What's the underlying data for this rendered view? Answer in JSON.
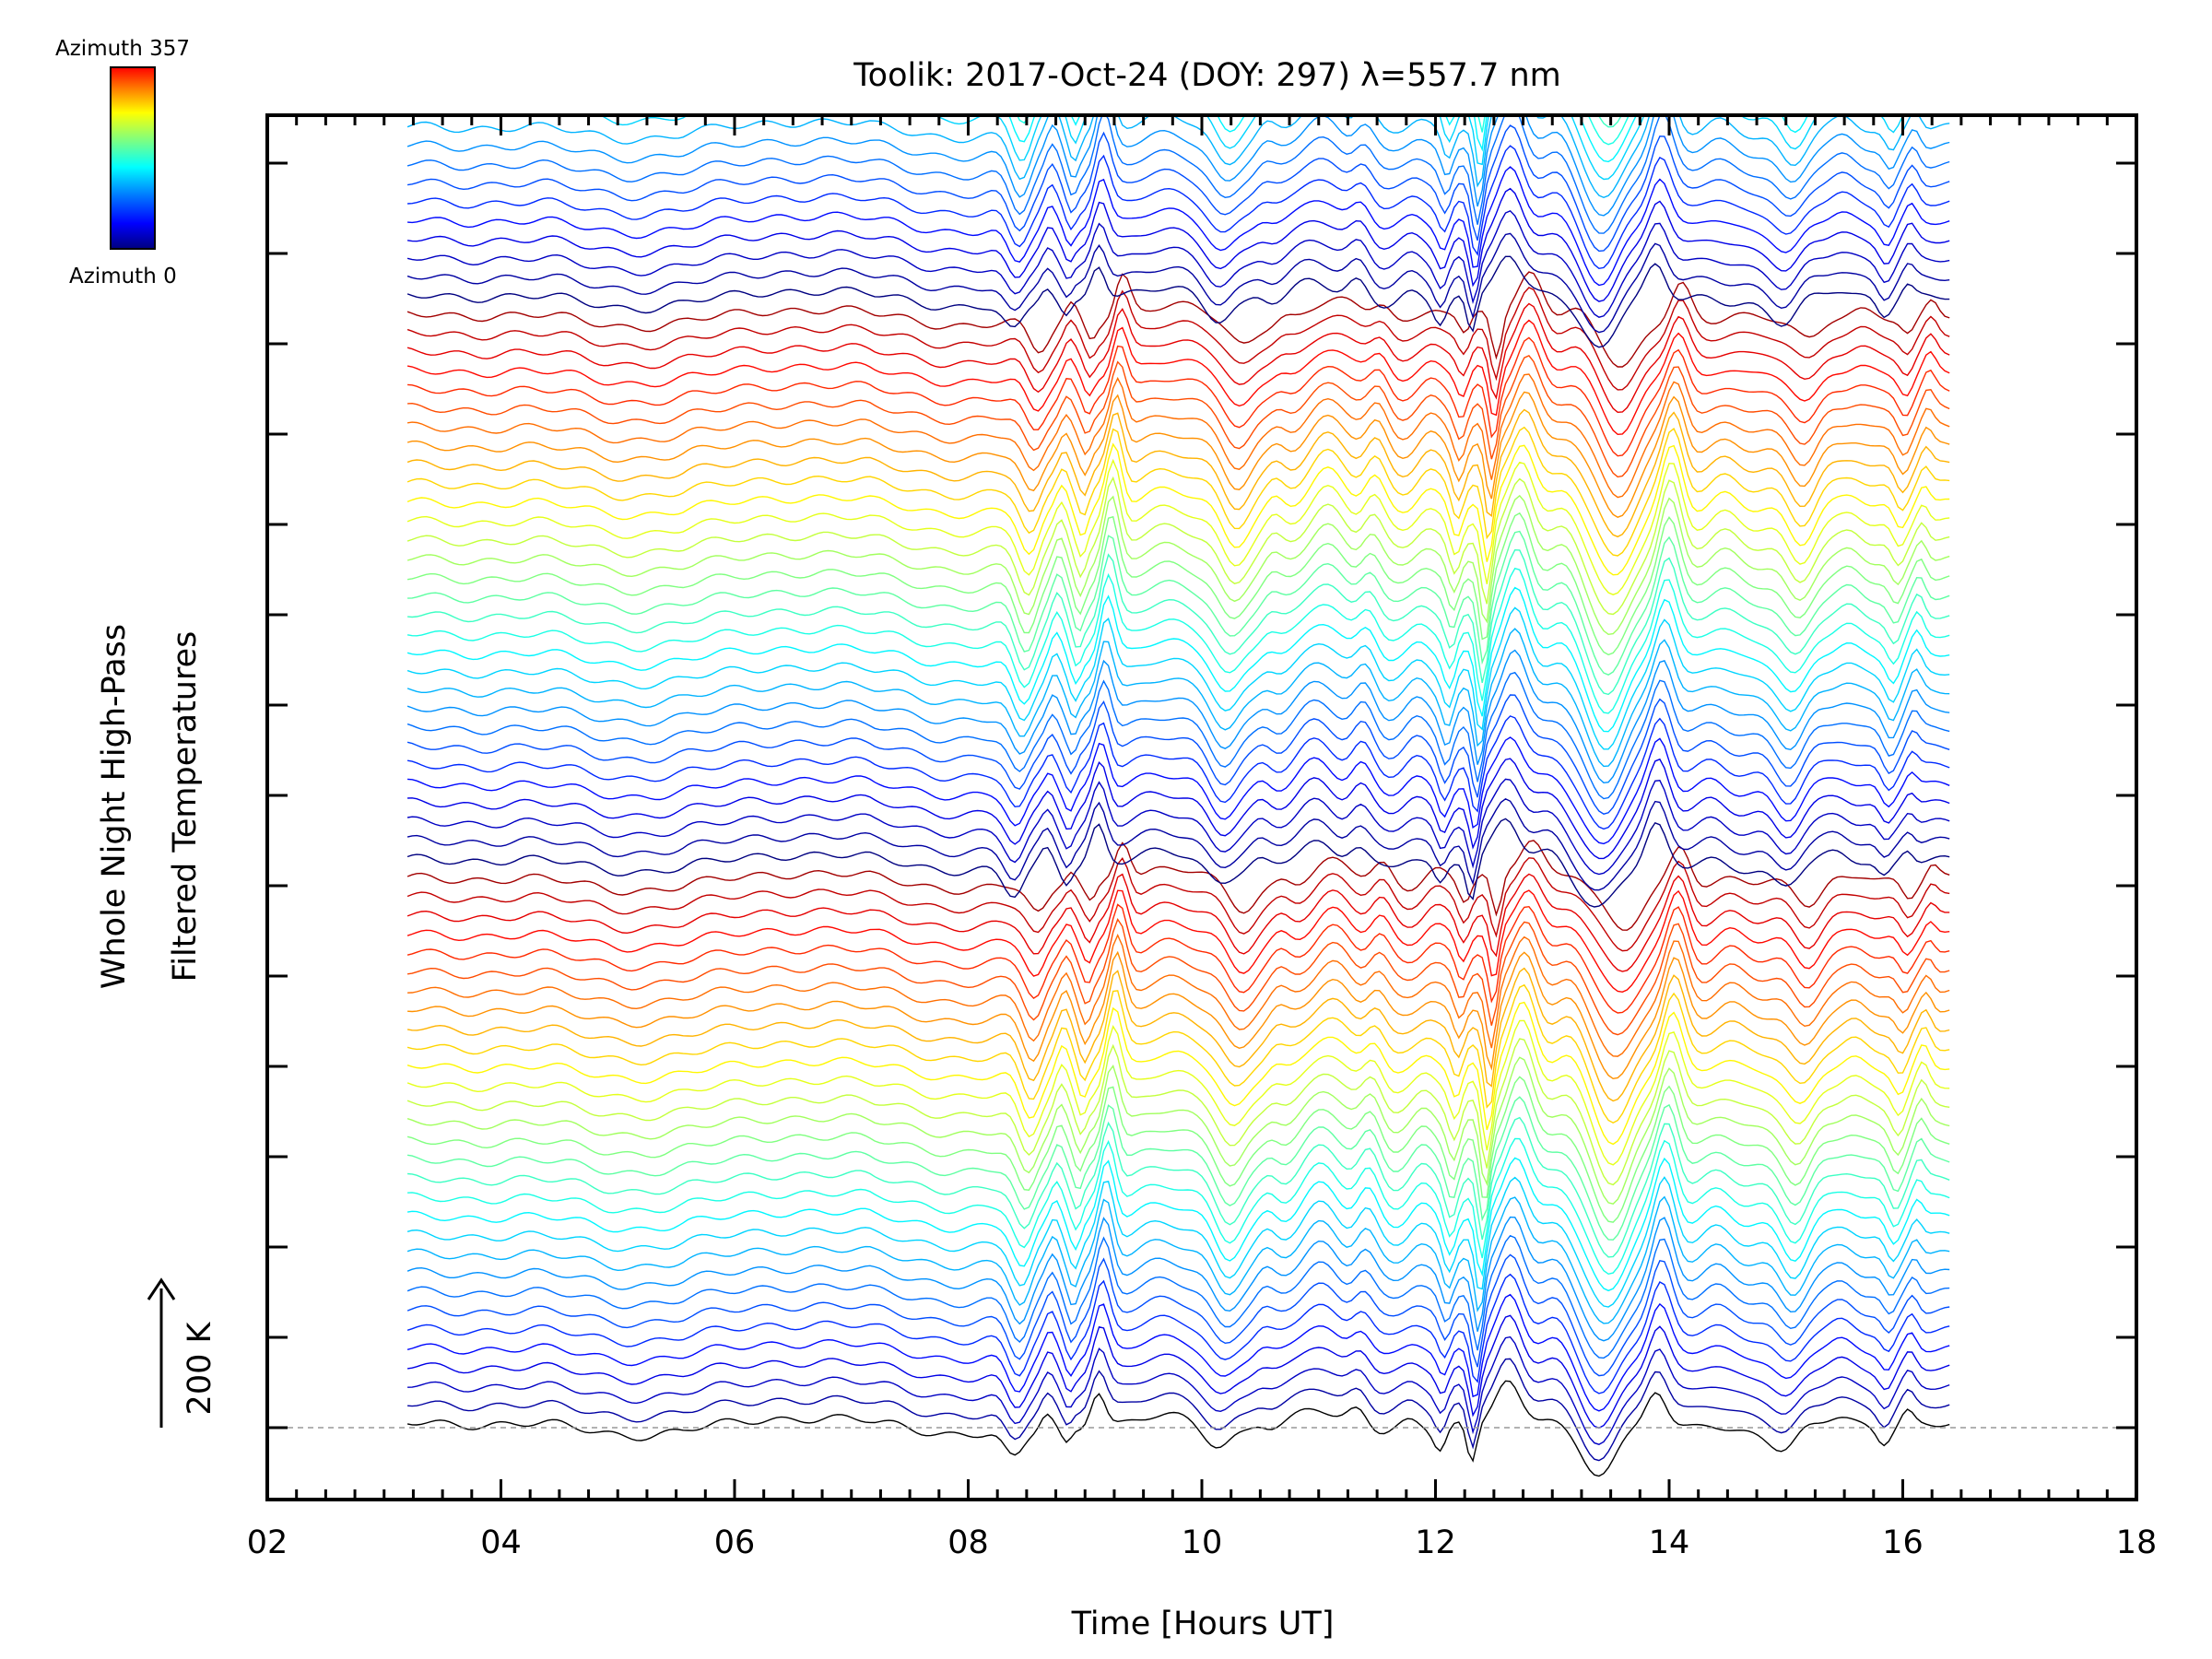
{
  "chart_data": {
    "type": "line",
    "title": "Toolik: 2017-Oct-24 (DOY: 297) λ=557.7 nm",
    "xlabel": "Time [Hours UT]",
    "ylabel_line1": "Whole Night High-Pass",
    "ylabel_line2": "Filtered Temperatures",
    "scale_label": "200 K",
    "xlim": [
      2,
      18
    ],
    "x_ticks": [
      "02",
      "04",
      "06",
      "08",
      "10",
      "12",
      "14",
      "16",
      "18"
    ],
    "x_tick_values": [
      2,
      4,
      6,
      8,
      10,
      12,
      14,
      16,
      18
    ],
    "y_major_ticks": 15,
    "grid": false,
    "legend": {
      "type": "colorbar",
      "placement": "top-left",
      "max_label": "Azimuth 357",
      "min_label": "Azimuth 0",
      "colors": [
        "#00007f",
        "#0000ff",
        "#007fff",
        "#00ffff",
        "#7fff7f",
        "#ffff00",
        "#ff7f00",
        "#ff0000"
      ]
    },
    "series_description": "Stacked high-pass filtered temperature traces, one per azimuth bin (0 to 357 deg), each offset vertically; colour cycles with azimuth.",
    "n_series": 160,
    "series_offset_K": 27,
    "time_start": 3.2,
    "time_end": 16.4,
    "baseline_trace_color": "#000000",
    "key_features": [
      {
        "time": 8.5,
        "effect": "dip"
      },
      {
        "time": 9.2,
        "effect": "sharp peak"
      },
      {
        "time": 10.2,
        "effect": "dip"
      },
      {
        "time": 11.0,
        "effect": "peak"
      },
      {
        "time": 12.4,
        "effect": "deep dip"
      },
      {
        "time": 12.7,
        "effect": "peak"
      },
      {
        "time": 13.5,
        "effect": "broad dip"
      },
      {
        "time": 14.0,
        "effect": "peak"
      },
      {
        "time": 15.1,
        "effect": "dip"
      },
      {
        "time": 16.0,
        "effect": "dip"
      }
    ]
  }
}
